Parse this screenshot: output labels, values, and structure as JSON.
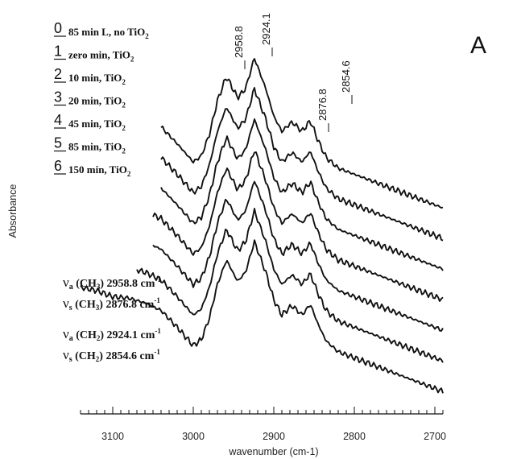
{
  "chart_data": {
    "type": "line",
    "panel_label": "A",
    "ylabel": "Absorbance",
    "xlabel": "wavenumber (cm-1)",
    "x_ticks": [
      "3100",
      "3000",
      "2900",
      "2800",
      "2700"
    ],
    "x_tick_values": [
      3100,
      3000,
      2900,
      2800,
      2700
    ],
    "xlim": [
      3140,
      2690
    ],
    "x_reversed": true,
    "y_axis_ticks": false,
    "grid": false,
    "legend_placement": "top-left",
    "legend": [
      {
        "num": "0",
        "label": "85 min L, no TiO",
        "sub": "2"
      },
      {
        "num": "1",
        "label": "zero min, TiO",
        "sub": "2"
      },
      {
        "num": "2",
        "label": "10 min, TiO",
        "sub": "2"
      },
      {
        "num": "3",
        "label": "20 min, TiO",
        "sub": "2"
      },
      {
        "num": "4",
        "label": "45 min, TiO",
        "sub": "2"
      },
      {
        "num": "5",
        "label": "85 min, TiO",
        "sub": "2"
      },
      {
        "num": "6",
        "label": "150 min, TiO",
        "sub": "2"
      }
    ],
    "peak_labels": [
      "2958.8",
      "2924.1",
      "2876.8",
      "2854.6"
    ],
    "peak_positions": [
      2958.8,
      2924.1,
      2876.8,
      2854.6
    ],
    "assignments": [
      {
        "nu": "ν",
        "mode": "a",
        "group": "(CH",
        "group_sub": "3",
        "value": "2958.8 cm",
        "unit_sup": "-1"
      },
      {
        "nu": "ν",
        "mode": "s",
        "group": "(CH",
        "group_sub": "3",
        "value": "2876.8 cm",
        "unit_sup": "-1"
      },
      {
        "nu": "ν",
        "mode": "a",
        "group": "(CH",
        "group_sub": "2",
        "value": "2924.1 cm",
        "unit_sup": "-1"
      },
      {
        "nu": "ν",
        "mode": "s",
        "group": "(CH",
        "group_sub": "2",
        "value": "2854.6 cm",
        "unit_sup": "-1"
      }
    ],
    "spectrum_profile": {
      "x": [
        3140,
        3120,
        3100,
        3080,
        3060,
        3040,
        3020,
        3000,
        2990,
        2980,
        2970,
        2958.8,
        2945,
        2935,
        2924.1,
        2910,
        2900,
        2890,
        2880,
        2876.8,
        2865,
        2854.6,
        2845,
        2835,
        2820,
        2800,
        2780,
        2760,
        2740,
        2720,
        2700,
        2690
      ],
      "y": [
        0.4,
        0.38,
        0.34,
        0.33,
        0.3,
        0.25,
        0.14,
        0.02,
        0.06,
        0.2,
        0.42,
        0.58,
        0.44,
        0.5,
        0.7,
        0.5,
        0.32,
        0.22,
        0.27,
        0.28,
        0.22,
        0.29,
        0.16,
        0.05,
        -0.02,
        -0.06,
        -0.1,
        -0.14,
        -0.18,
        -0.22,
        -0.26,
        -0.28
      ]
    },
    "series": [
      {
        "name": "0",
        "x_start": 3040,
        "offset": 0.0
      },
      {
        "name": "1",
        "x_start": 3040,
        "offset": -0.2
      },
      {
        "name": "2",
        "x_start": 3040,
        "offset": -0.4
      },
      {
        "name": "3",
        "x_start": 3050,
        "offset": -0.6
      },
      {
        "name": "4",
        "x_start": 3050,
        "offset": -0.8
      },
      {
        "name": "5",
        "x_start": 3070,
        "offset": -1.0
      },
      {
        "name": "6",
        "x_start": 3140,
        "offset": -1.2
      }
    ]
  }
}
